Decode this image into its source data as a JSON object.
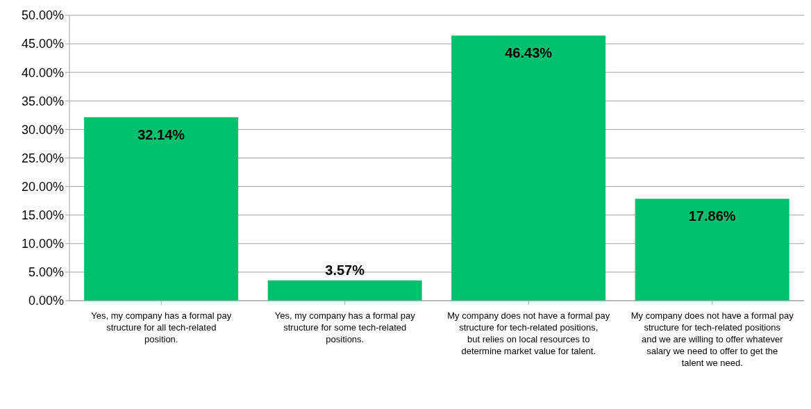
{
  "chart_data": {
    "type": "bar",
    "categories": [
      "Yes, my company has a formal pay structure for all tech-related position.",
      "Yes, my company has a formal pay structure for some tech-related positions.",
      "My company does not have a formal pay structure for tech-related positions, but relies on local resources to determine market value for talent.",
      "My company does not have a formal pay structure for tech-related positions and we are willing to offer whatever salary we need to offer to get the talent we need."
    ],
    "values": [
      32.14,
      3.57,
      46.43,
      17.86
    ],
    "value_labels": [
      "32.14%",
      "3.57%",
      "46.43%",
      "17.86%"
    ],
    "color": "#00c070",
    "ylim": [
      0,
      50
    ],
    "yticks": [
      {
        "value": 0,
        "label": "0.00%"
      },
      {
        "value": 5,
        "label": "5.00%"
      },
      {
        "value": 10,
        "label": "10.00%"
      },
      {
        "value": 15,
        "label": "15.00%"
      },
      {
        "value": 20,
        "label": "20.00%"
      },
      {
        "value": 25,
        "label": "25.00%"
      },
      {
        "value": 30,
        "label": "30.00%"
      },
      {
        "value": 35,
        "label": "35.00%"
      },
      {
        "value": 40,
        "label": "40.00%"
      },
      {
        "value": 45,
        "label": "45.00%"
      },
      {
        "value": 50,
        "label": "50.00%"
      }
    ],
    "grid": "y",
    "legend": false
  }
}
